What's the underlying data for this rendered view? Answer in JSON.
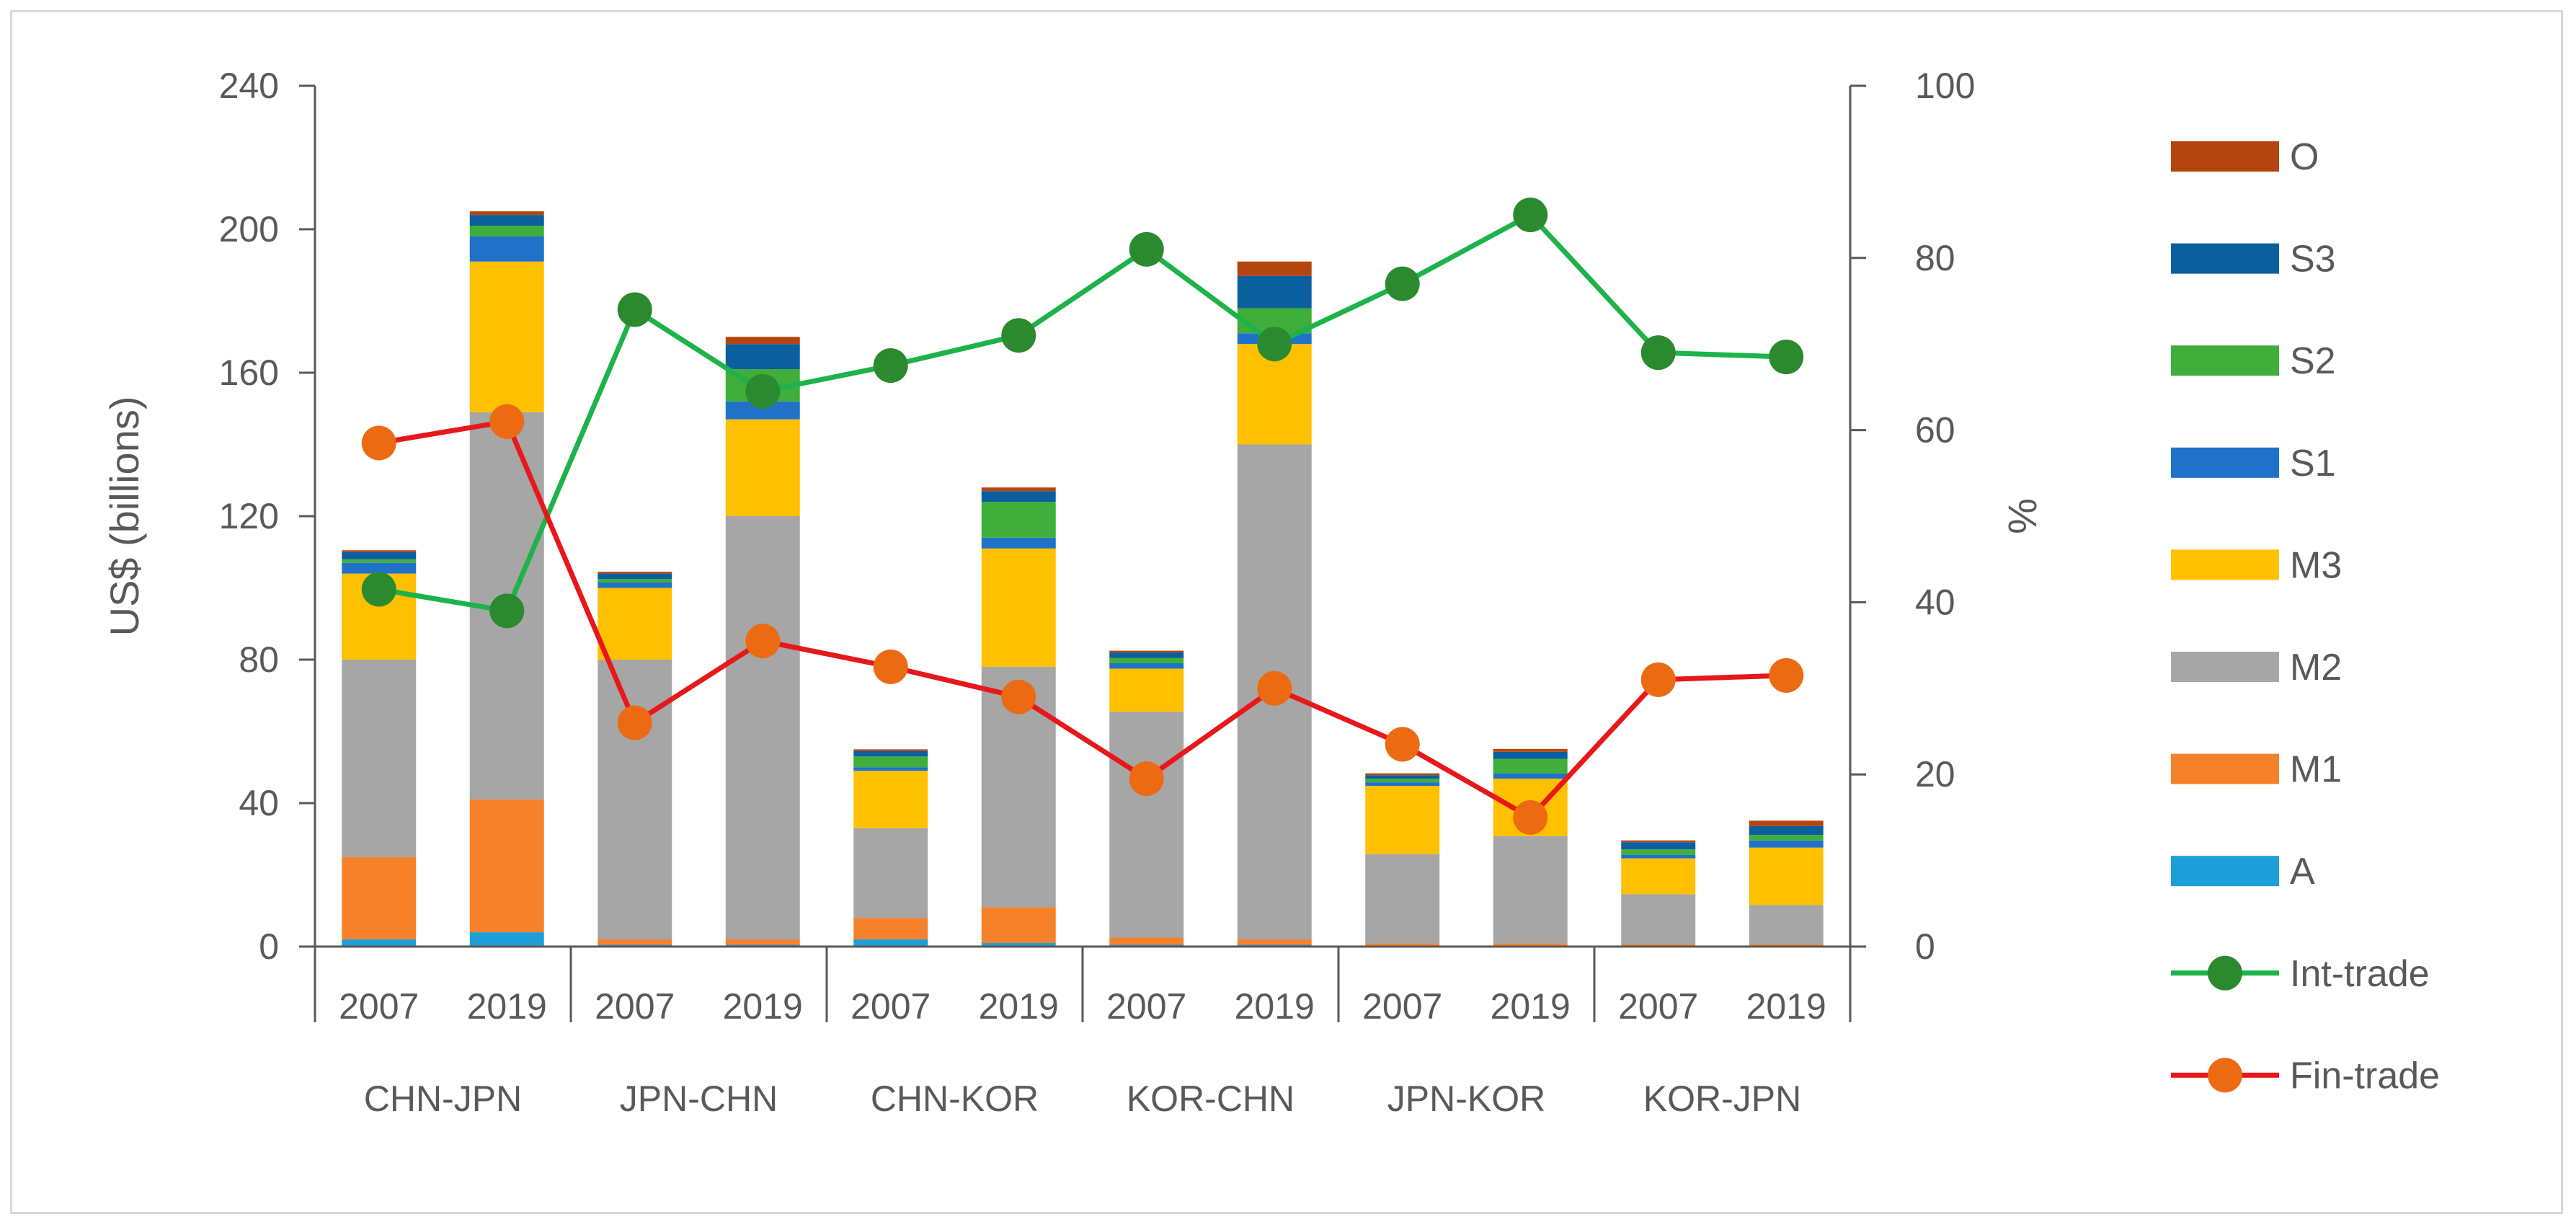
{
  "chart_data": {
    "type": "bar",
    "subtype": "stacked bar with line overlay on secondary axis",
    "categories": [
      "2007",
      "2019",
      "2007",
      "2019",
      "2007",
      "2019",
      "2007",
      "2019",
      "2007",
      "2019",
      "2007",
      "2019"
    ],
    "groups": [
      "CHN-JPN",
      "JPN-CHN",
      "CHN-KOR",
      "KOR-CHN",
      "JPN-KOR",
      "KOR-JPN"
    ],
    "ylabel": "US$ (billions)",
    "y2label": "%",
    "ylim": [
      0,
      240
    ],
    "y2lim": [
      0,
      100
    ],
    "yticks": [
      "0",
      "40",
      "80",
      "120",
      "160",
      "200",
      "240"
    ],
    "y2ticks": [
      "0",
      "20",
      "40",
      "60",
      "80",
      "100"
    ],
    "grid": false,
    "legend_position": "right",
    "series": [
      {
        "name": "A",
        "color": "#1f9fd9",
        "values": [
          2,
          4,
          0.5,
          0.5,
          2,
          1,
          0.5,
          0.5,
          0.3,
          0.3,
          0.3,
          0.3
        ]
      },
      {
        "name": "M1",
        "color": "#f5822a",
        "values": [
          23,
          37,
          1.5,
          1.5,
          6,
          10,
          2,
          1.5,
          0.5,
          0.5,
          0.3,
          0.3
        ]
      },
      {
        "name": "M2",
        "color": "#a6a6a6",
        "values": [
          55,
          108,
          78,
          118,
          25,
          67,
          63,
          138,
          25,
          30,
          14,
          11
        ]
      },
      {
        "name": "M3",
        "color": "#ffc000",
        "values": [
          24,
          42,
          20,
          27,
          16,
          33,
          12,
          28,
          19,
          16,
          10,
          16
        ]
      },
      {
        "name": "S1",
        "color": "#1f72c8",
        "values": [
          3,
          7,
          1.5,
          5,
          1,
          3,
          1.5,
          3,
          1,
          1.5,
          1,
          2
        ]
      },
      {
        "name": "S2",
        "color": "#3fae3a",
        "values": [
          1,
          3,
          1,
          9,
          3,
          10,
          1.5,
          7,
          1,
          4,
          1.5,
          1.5
        ]
      },
      {
        "name": "S3",
        "color": "#0b5f9e",
        "values": [
          2,
          3,
          1.5,
          7,
          1.5,
          3,
          1.5,
          9,
          1,
          2,
          2,
          2.5
        ]
      },
      {
        "name": "O",
        "color": "#b5450f",
        "values": [
          0.5,
          1,
          0.5,
          2,
          0.5,
          1,
          0.5,
          4,
          0.5,
          0.8,
          0.5,
          1.5
        ]
      }
    ],
    "lines": [
      {
        "name": "Int-trade",
        "color": "#1db34a",
        "marker_color": "#2c8a2e",
        "axis": "right",
        "values": [
          41.5,
          39,
          74,
          64.5,
          67.5,
          71,
          81,
          70,
          77,
          85,
          69,
          68.5
        ]
      },
      {
        "name": "Fin-trade",
        "color": "#e8171a",
        "marker_color": "#ec6b12",
        "axis": "right",
        "values": [
          58.5,
          61,
          26,
          35.5,
          32.5,
          29,
          19.5,
          30,
          23.5,
          15,
          31,
          31.5
        ]
      }
    ]
  }
}
